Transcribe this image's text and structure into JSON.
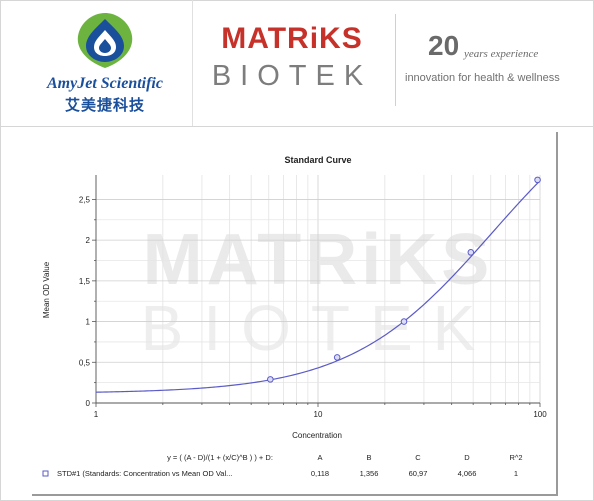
{
  "header": {
    "amyjet": {
      "name": "AmyJet Scientific",
      "chinese": "艾美捷科技"
    },
    "matriks": {
      "top": "MATRiKS",
      "bottom": "BIOTEK"
    },
    "anniversary": {
      "number": "20",
      "text": "years experience",
      "tagline": "innovation for health & wellness"
    },
    "colors": {
      "amyjet_blue": "#1a4f9c",
      "amyjet_green": "#6cb33f",
      "matriks_red": "#c6322a",
      "grey": "#7d7d7d"
    }
  },
  "watermark": {
    "top": "MATRiKS",
    "bottom": "BIOTEK"
  },
  "chart_data": {
    "type": "scatter",
    "title": "Standard Curve",
    "xlabel": "Concentration",
    "ylabel": "Mean OD Value",
    "xscale": "log",
    "xlim": [
      1,
      100
    ],
    "ylim": [
      0,
      2.8
    ],
    "x_ticks": [
      "1",
      "10",
      "100"
    ],
    "y_ticks": [
      "0",
      "0,5",
      "1",
      "1,5",
      "2",
      "2,5"
    ],
    "grid": true,
    "curve_color": "#5b5bc8",
    "points": [
      {
        "x": 6.1,
        "y": 0.29
      },
      {
        "x": 12.2,
        "y": 0.56
      },
      {
        "x": 24.4,
        "y": 1.0
      },
      {
        "x": 48.8,
        "y": 1.85
      },
      {
        "x": 97.5,
        "y": 2.74
      }
    ],
    "fit": {
      "A": 0.118,
      "B": 1.356,
      "C": 60.97,
      "D": 4.066
    },
    "legend_table": {
      "headers": [
        "y = ( (A - D)/(1 + (x/C)^B ) ) + D:",
        "A",
        "B",
        "C",
        "D",
        "R^2"
      ],
      "rows": [
        [
          "STD#1 (Standards: Concentration vs Mean OD Val...",
          "0,118",
          "1,356",
          "60,97",
          "4,066",
          "1"
        ]
      ]
    }
  }
}
